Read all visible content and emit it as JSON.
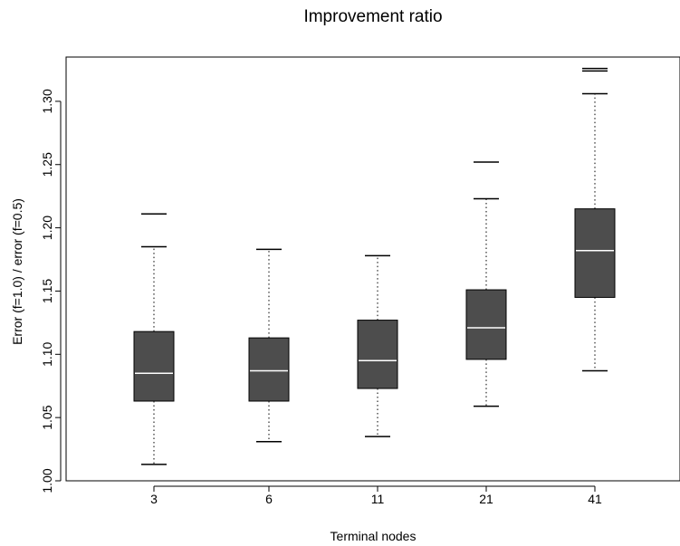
{
  "chart_data": {
    "type": "box",
    "title": "Improvement ratio",
    "xlabel": "Terminal nodes",
    "ylabel": "Error (f=1.0) / error (f=0.5)",
    "ylim": [
      1.0,
      1.335
    ],
    "yticks": [
      "1.00",
      "1.05",
      "1.10",
      "1.15",
      "1.20",
      "1.25",
      "1.30"
    ],
    "categories": [
      "3",
      "6",
      "11",
      "21",
      "41"
    ],
    "boxes": [
      {
        "category": "3",
        "whisker_low": 1.013,
        "q1": 1.063,
        "median": 1.085,
        "q3": 1.118,
        "whisker_high": 1.185,
        "outliers": [
          1.211
        ]
      },
      {
        "category": "6",
        "whisker_low": 1.031,
        "q1": 1.063,
        "median": 1.087,
        "q3": 1.113,
        "whisker_high": 1.183,
        "outliers": []
      },
      {
        "category": "11",
        "whisker_low": 1.035,
        "q1": 1.073,
        "median": 1.095,
        "q3": 1.127,
        "whisker_high": 1.178,
        "outliers": []
      },
      {
        "category": "21",
        "whisker_low": 1.059,
        "q1": 1.096,
        "median": 1.121,
        "q3": 1.151,
        "whisker_high": 1.223,
        "outliers": [
          1.252
        ]
      },
      {
        "category": "41",
        "whisker_low": 1.087,
        "q1": 1.145,
        "median": 1.182,
        "q3": 1.215,
        "whisker_high": 1.306,
        "outliers": [
          1.324,
          1.326
        ]
      }
    ],
    "colors": {
      "box_fill": "#4d4d4d",
      "median_line": "#ffffff",
      "whisker": "#000000",
      "frame": "#000000"
    },
    "grid": false
  }
}
